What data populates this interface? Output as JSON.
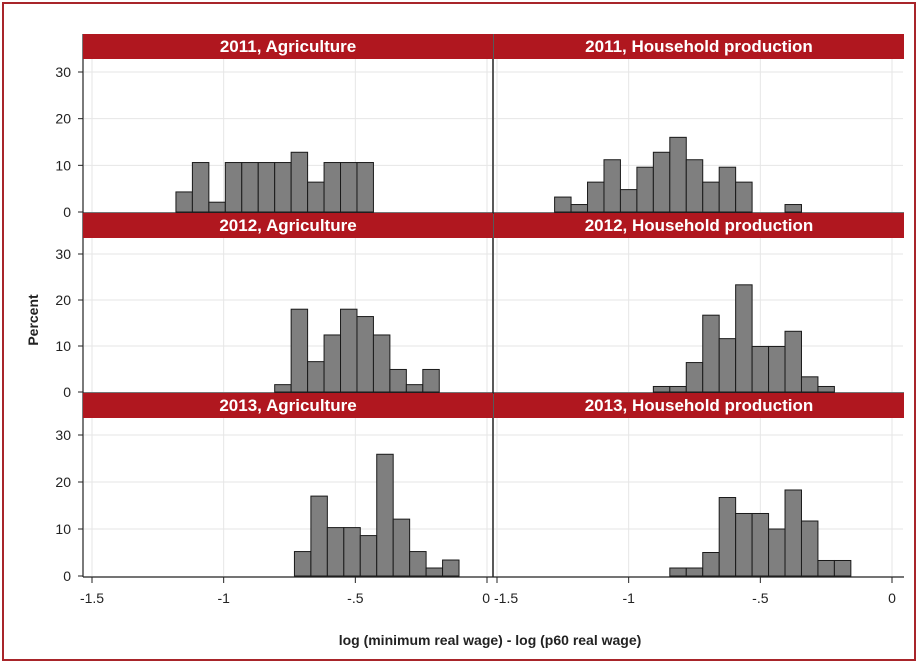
{
  "chart_data": {
    "type": "histogram",
    "xlabel": "log (minimum real wage) - log (p60 real wage)",
    "ylabel": "Percent",
    "xlim": [
      -1.5,
      0
    ],
    "ylim": [
      0,
      33
    ],
    "x_ticks": [
      -1.5,
      -1,
      -0.5,
      0
    ],
    "x_tick_labels": [
      "-1.5",
      "-1",
      "-.5",
      "0"
    ],
    "y_ticks": [
      0,
      10,
      20,
      30
    ],
    "y_tick_labels": [
      "0",
      "10",
      "20",
      "30"
    ],
    "bin_width": 0.0625,
    "grid": true,
    "colors": {
      "strip": "#b0171f",
      "bar_fill": "#7f7f7f",
      "bar_stroke": "#1a1a1a",
      "grid": "#e6e6e6",
      "frame": "#a8252a"
    },
    "panels": [
      {
        "title": "2011, Agriculture",
        "bins": [
          {
            "x": -1.15,
            "y": 4.3
          },
          {
            "x": -1.0875,
            "y": 10.6
          },
          {
            "x": -1.025,
            "y": 2.1
          },
          {
            "x": -0.9625,
            "y": 10.6
          },
          {
            "x": -0.9,
            "y": 10.6
          },
          {
            "x": -0.8375,
            "y": 10.6
          },
          {
            "x": -0.775,
            "y": 10.6
          },
          {
            "x": -0.7125,
            "y": 12.8
          },
          {
            "x": -0.65,
            "y": 6.4
          },
          {
            "x": -0.5875,
            "y": 10.6
          },
          {
            "x": -0.525,
            "y": 10.6
          },
          {
            "x": -0.4625,
            "y": 10.6
          }
        ]
      },
      {
        "title": "2011, Household production",
        "bins": [
          {
            "x": -1.25,
            "y": 3.2
          },
          {
            "x": -1.1875,
            "y": 1.6
          },
          {
            "x": -1.125,
            "y": 6.4
          },
          {
            "x": -1.0625,
            "y": 11.2
          },
          {
            "x": -1.0,
            "y": 4.8
          },
          {
            "x": -0.9375,
            "y": 9.6
          },
          {
            "x": -0.875,
            "y": 12.8
          },
          {
            "x": -0.8125,
            "y": 16.0
          },
          {
            "x": -0.75,
            "y": 11.2
          },
          {
            "x": -0.6875,
            "y": 6.4
          },
          {
            "x": -0.625,
            "y": 9.6
          },
          {
            "x": -0.5625,
            "y": 6.4
          },
          {
            "x": -0.375,
            "y": 1.6
          }
        ]
      },
      {
        "title": "2012, Agriculture",
        "bins": [
          {
            "x": -0.775,
            "y": 1.6
          },
          {
            "x": -0.7125,
            "y": 18.0
          },
          {
            "x": -0.65,
            "y": 6.6
          },
          {
            "x": -0.5875,
            "y": 12.4
          },
          {
            "x": -0.525,
            "y": 18.0
          },
          {
            "x": -0.4625,
            "y": 16.4
          },
          {
            "x": -0.4,
            "y": 12.4
          },
          {
            "x": -0.3375,
            "y": 4.9
          },
          {
            "x": -0.275,
            "y": 1.6
          },
          {
            "x": -0.2125,
            "y": 4.9
          }
        ]
      },
      {
        "title": "2012, Household production",
        "bins": [
          {
            "x": -0.875,
            "y": 1.2
          },
          {
            "x": -0.8125,
            "y": 1.2
          },
          {
            "x": -0.75,
            "y": 6.4
          },
          {
            "x": -0.6875,
            "y": 16.7
          },
          {
            "x": -0.625,
            "y": 11.6
          },
          {
            "x": -0.5625,
            "y": 23.3
          },
          {
            "x": -0.5,
            "y": 9.9
          },
          {
            "x": -0.4375,
            "y": 9.9
          },
          {
            "x": -0.375,
            "y": 13.2
          },
          {
            "x": -0.3125,
            "y": 3.3
          },
          {
            "x": -0.25,
            "y": 1.2
          }
        ]
      },
      {
        "title": "2013, Agriculture",
        "bins": [
          {
            "x": -0.7,
            "y": 5.2
          },
          {
            "x": -0.6375,
            "y": 17.0
          },
          {
            "x": -0.575,
            "y": 10.3
          },
          {
            "x": -0.5125,
            "y": 10.3
          },
          {
            "x": -0.45,
            "y": 8.6
          },
          {
            "x": -0.3875,
            "y": 25.9
          },
          {
            "x": -0.325,
            "y": 12.1
          },
          {
            "x": -0.2625,
            "y": 5.2
          },
          {
            "x": -0.2,
            "y": 1.7
          },
          {
            "x": -0.1375,
            "y": 3.4
          }
        ]
      },
      {
        "title": "2013, Household production",
        "bins": [
          {
            "x": -0.8125,
            "y": 1.7
          },
          {
            "x": -0.75,
            "y": 1.7
          },
          {
            "x": -0.6875,
            "y": 5.0
          },
          {
            "x": -0.625,
            "y": 16.7
          },
          {
            "x": -0.5625,
            "y": 13.3
          },
          {
            "x": -0.5,
            "y": 13.3
          },
          {
            "x": -0.4375,
            "y": 10.0
          },
          {
            "x": -0.375,
            "y": 18.3
          },
          {
            "x": -0.3125,
            "y": 11.7
          },
          {
            "x": -0.25,
            "y": 3.3
          },
          {
            "x": -0.1875,
            "y": 3.3
          }
        ]
      }
    ]
  }
}
